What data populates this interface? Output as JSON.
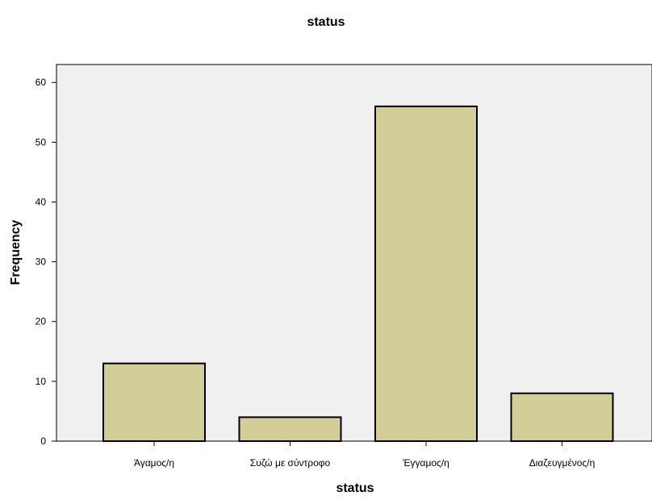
{
  "chart_data": {
    "type": "bar",
    "title": "status",
    "xlabel": "status",
    "ylabel": "Frequency",
    "categories": [
      "Άγαμος/η",
      "Συζώ με σύντροφο",
      "Έγγαμος/η",
      "Διαζευγμένος/η"
    ],
    "values": [
      13,
      4,
      56,
      8
    ],
    "ylim": [
      0,
      63
    ],
    "yticks": [
      0,
      10,
      20,
      30,
      40,
      50,
      60
    ],
    "grid": false,
    "legend": "none",
    "colors": {
      "bar_fill": "#d3ce97",
      "bar_stroke": "#000000",
      "plot_background": "#f0f0f0",
      "axis": "#000000"
    }
  }
}
